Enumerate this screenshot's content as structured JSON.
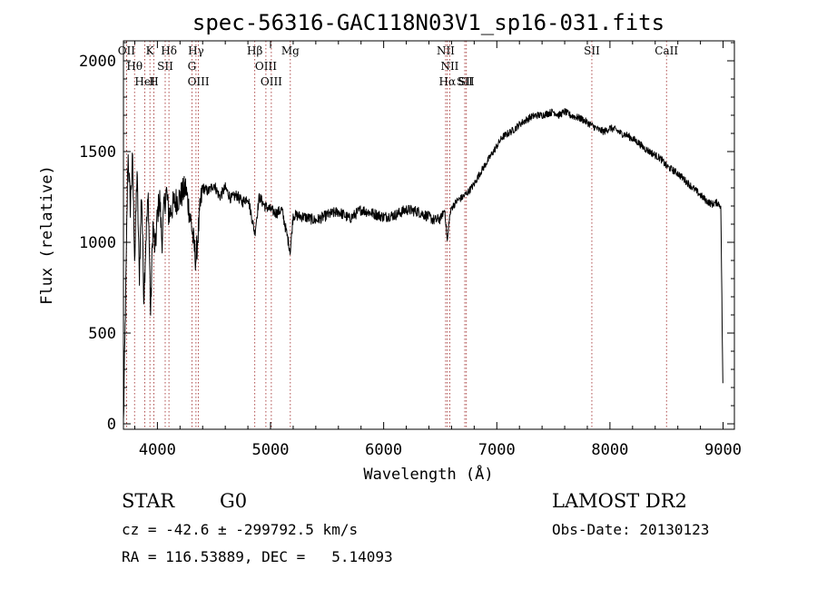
{
  "chart_data": {
    "type": "line",
    "title": "spec-56316-GAC118N03V1_sp16-031.fits",
    "xlabel": "Wavelength (Å)",
    "ylabel": "Flux (relative)",
    "xlim": [
      3700,
      9100
    ],
    "ylim": [
      -30,
      2110
    ],
    "xticks": [
      4000,
      5000,
      6000,
      7000,
      8000,
      9000
    ],
    "yticks": [
      0,
      500,
      1000,
      1500,
      2000
    ],
    "grid": false,
    "series": [
      {
        "x": [
          3700,
          3720,
          3740,
          3760,
          3780,
          3800,
          3820,
          3840,
          3860,
          3880,
          3900,
          3920,
          3940,
          3960,
          3980,
          4000,
          4020,
          4040,
          4060,
          4080,
          4100,
          4150,
          4200,
          4250,
          4300,
          4340,
          4380,
          4400,
          4450,
          4500,
          4550,
          4600,
          4650,
          4700,
          4750,
          4800,
          4861,
          4900,
          4950,
          5000,
          5050,
          5100,
          5175,
          5200,
          5300,
          5400,
          5500,
          5600,
          5700,
          5800,
          5900,
          6000,
          6100,
          6200,
          6300,
          6400,
          6450,
          6500,
          6540,
          6563,
          6580,
          6600,
          6650,
          6700,
          6750,
          6800,
          6850,
          6900,
          6950,
          7000,
          7050,
          7100,
          7150,
          7200,
          7250,
          7300,
          7350,
          7400,
          7450,
          7500,
          7550,
          7600,
          7650,
          7700,
          7750,
          7800,
          7850,
          7900,
          7950,
          8000,
          8050,
          8100,
          8150,
          8200,
          8250,
          8300,
          8350,
          8400,
          8450,
          8500,
          8550,
          8600,
          8650,
          8700,
          8750,
          8800,
          8850,
          8900,
          8950,
          8980,
          9000
        ],
        "y": [
          0,
          700,
          1500,
          1200,
          1450,
          900,
          1400,
          800,
          1300,
          700,
          1050,
          1250,
          600,
          1100,
          950,
          1150,
          1250,
          1000,
          1200,
          1280,
          1150,
          1220,
          1250,
          1300,
          1100,
          900,
          1200,
          1300,
          1280,
          1320,
          1250,
          1300,
          1240,
          1260,
          1220,
          1250,
          1050,
          1250,
          1200,
          1180,
          1160,
          1180,
          950,
          1150,
          1140,
          1120,
          1150,
          1170,
          1130,
          1180,
          1160,
          1140,
          1150,
          1180,
          1170,
          1140,
          1120,
          1130,
          1180,
          1000,
          1130,
          1190,
          1230,
          1250,
          1280,
          1320,
          1380,
          1430,
          1480,
          1530,
          1580,
          1600,
          1620,
          1650,
          1670,
          1690,
          1700,
          1700,
          1710,
          1720,
          1700,
          1720,
          1700,
          1690,
          1680,
          1660,
          1640,
          1620,
          1610,
          1630,
          1620,
          1600,
          1590,
          1570,
          1550,
          1520,
          1500,
          1480,
          1460,
          1420,
          1400,
          1380,
          1350,
          1320,
          1290,
          1260,
          1230,
          1210,
          1220,
          1200,
          100
        ]
      }
    ],
    "lines": [
      {
        "label": "OII",
        "wavelength": 3727
      },
      {
        "label": "Hθ",
        "wavelength": 3798
      },
      {
        "label": "HeI",
        "wavelength": 3889
      },
      {
        "label": "K",
        "wavelength": 3934
      },
      {
        "label": "SII",
        "wavelength": 4069
      },
      {
        "label": "H",
        "wavelength": 3969
      },
      {
        "label": "Hδ",
        "wavelength": 4102
      },
      {
        "label": "Hγ",
        "wavelength": 4341
      },
      {
        "label": "G",
        "wavelength": 4305
      },
      {
        "label": "OIII",
        "wavelength": 4363
      },
      {
        "label": "Hβ",
        "wavelength": 4861
      },
      {
        "label": "OIII",
        "wavelength": 4959
      },
      {
        "label": "OIII",
        "wavelength": 5007
      },
      {
        "label": "Mg",
        "wavelength": 5175
      },
      {
        "label": "NII",
        "wavelength": 6548
      },
      {
        "label": "NII",
        "wavelength": 6584
      },
      {
        "label": "Hα",
        "wavelength": 6563
      },
      {
        "label": "SII",
        "wavelength": 6717
      },
      {
        "label": "SII",
        "wavelength": 6731
      },
      {
        "label": "SII",
        "wavelength": 7840
      },
      {
        "label": "CaII",
        "wavelength": 8500
      }
    ]
  },
  "info": {
    "class": "STAR",
    "subclass": "G0",
    "survey": "LAMOST DR2",
    "cz": "cz = -42.6 ± -299792.5 km/s",
    "obs_date": "Obs-Date: 20130123",
    "radec": "RA = 116.53889, DEC =   5.14093"
  },
  "colors": {
    "axis": "#000000",
    "spectrum": "#000000",
    "line_marker": "#9b2020"
  }
}
